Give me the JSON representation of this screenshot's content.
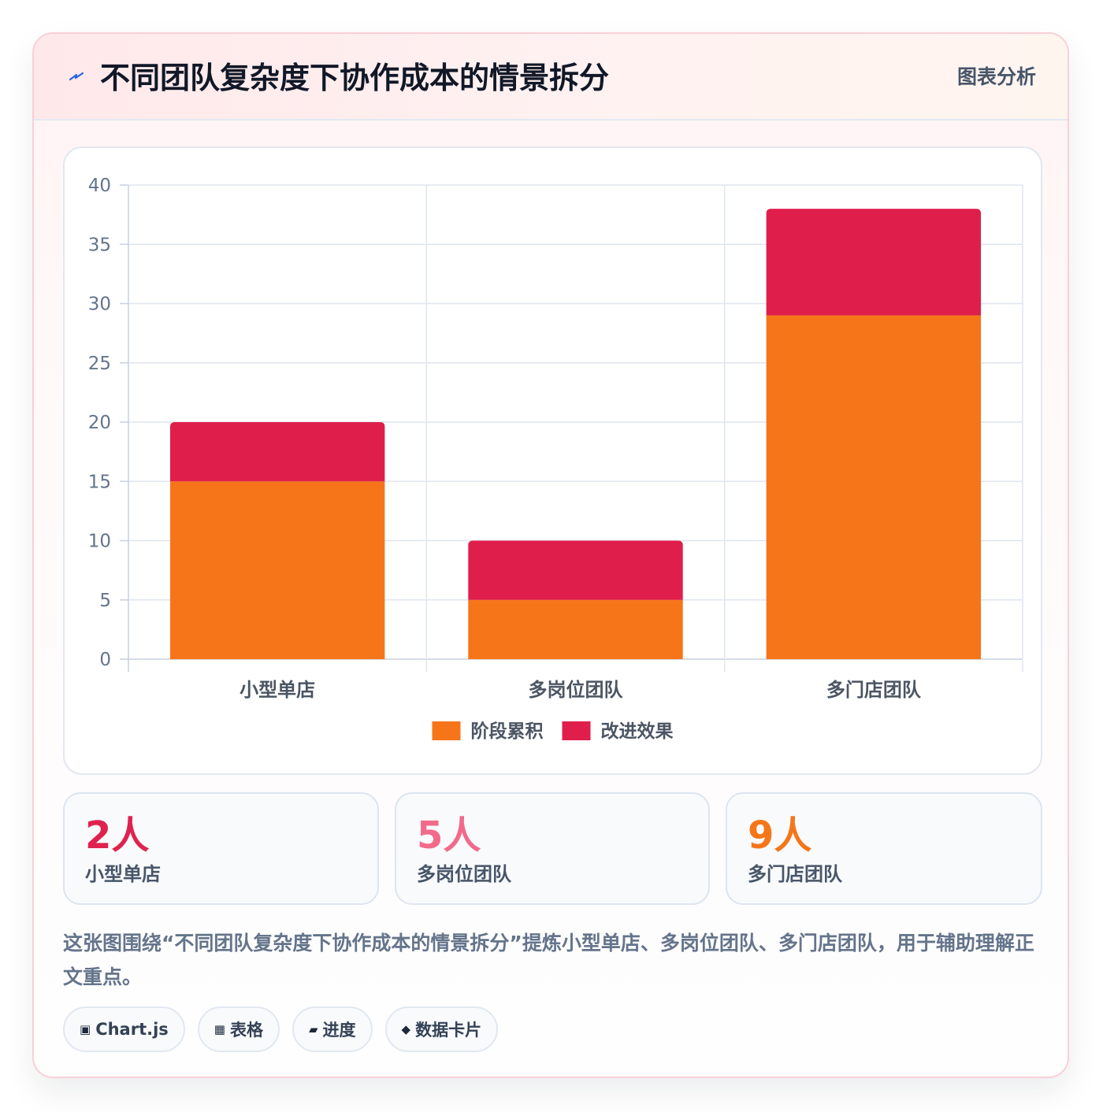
{
  "header": {
    "icon": "lightning-icon",
    "title": "不同团队复杂度下协作成本的情景拆分",
    "badge": "图表分析"
  },
  "chart_data": {
    "type": "bar",
    "stacked": true,
    "categories": [
      "小型单店",
      "多岗位团队",
      "多门店团队"
    ],
    "series": [
      {
        "name": "阶段累积",
        "values": [
          15,
          5,
          29
        ],
        "color": "#f67519"
      },
      {
        "name": "改进效果",
        "values": [
          5,
          5,
          9
        ],
        "color": "#e01e4b"
      }
    ],
    "ylim": [
      0,
      40
    ],
    "yticks": [
      0,
      5,
      10,
      15,
      20,
      25,
      30,
      35,
      40
    ],
    "grid": true,
    "legend": "bottom-center"
  },
  "stats": [
    {
      "value": "2人",
      "label": "小型单店",
      "color": "#e0224f"
    },
    {
      "value": "5人",
      "label": "多岗位团队",
      "color": "#f26a8a"
    },
    {
      "value": "9人",
      "label": "多门店团队",
      "color": "#f57618"
    }
  ],
  "description": "这张图围绕“不同团队复杂度下协作成本的情景拆分”提炼小型单店、多岗位团队、多门店团队，用于辅助理解正文重点。",
  "tags": [
    {
      "icon": "▣",
      "icon_name": "chart-icon",
      "label": "Chart.js"
    },
    {
      "icon": "▦",
      "icon_name": "table-icon",
      "label": "表格"
    },
    {
      "icon": "▰",
      "icon_name": "progress-icon",
      "label": "进度"
    },
    {
      "icon": "◆",
      "icon_name": "diamond-icon",
      "label": "数据卡片"
    }
  ]
}
